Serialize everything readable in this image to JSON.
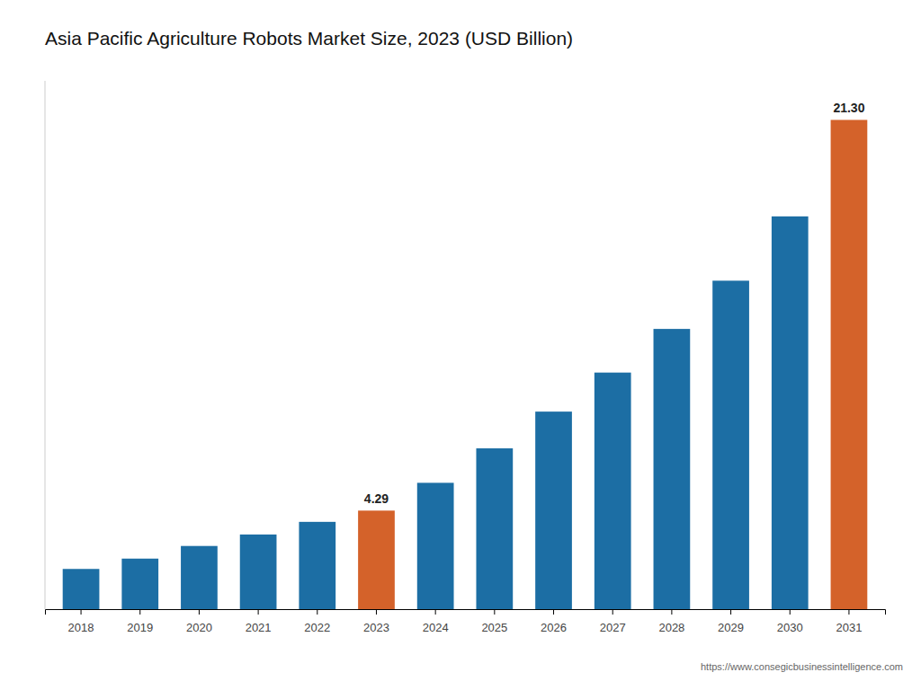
{
  "chart_data": {
    "type": "bar",
    "title": "Asia Pacific Agriculture Robots Market Size, 2023 (USD Billion)",
    "categories": [
      "2018",
      "2019",
      "2020",
      "2021",
      "2022",
      "2023",
      "2024",
      "2025",
      "2026",
      "2027",
      "2028",
      "2029",
      "2030",
      "2031"
    ],
    "values": [
      1.75,
      2.2,
      2.75,
      3.25,
      3.8,
      4.29,
      5.5,
      7.0,
      8.6,
      10.3,
      12.2,
      14.3,
      17.1,
      21.3
    ],
    "value_labels": [
      null,
      null,
      null,
      null,
      null,
      "4.29",
      null,
      null,
      null,
      null,
      null,
      null,
      null,
      "21.30"
    ],
    "colors": [
      "#1c6ea4",
      "#1c6ea4",
      "#1c6ea4",
      "#1c6ea4",
      "#1c6ea4",
      "#d4622a",
      "#1c6ea4",
      "#1c6ea4",
      "#1c6ea4",
      "#1c6ea4",
      "#1c6ea4",
      "#1c6ea4",
      "#1c6ea4",
      "#d4622a"
    ],
    "ylim": [
      0,
      23
    ],
    "grid": false,
    "tick_labels": "x",
    "annotations": [
      "https://www.consegicbusinessintelligence.com"
    ]
  }
}
